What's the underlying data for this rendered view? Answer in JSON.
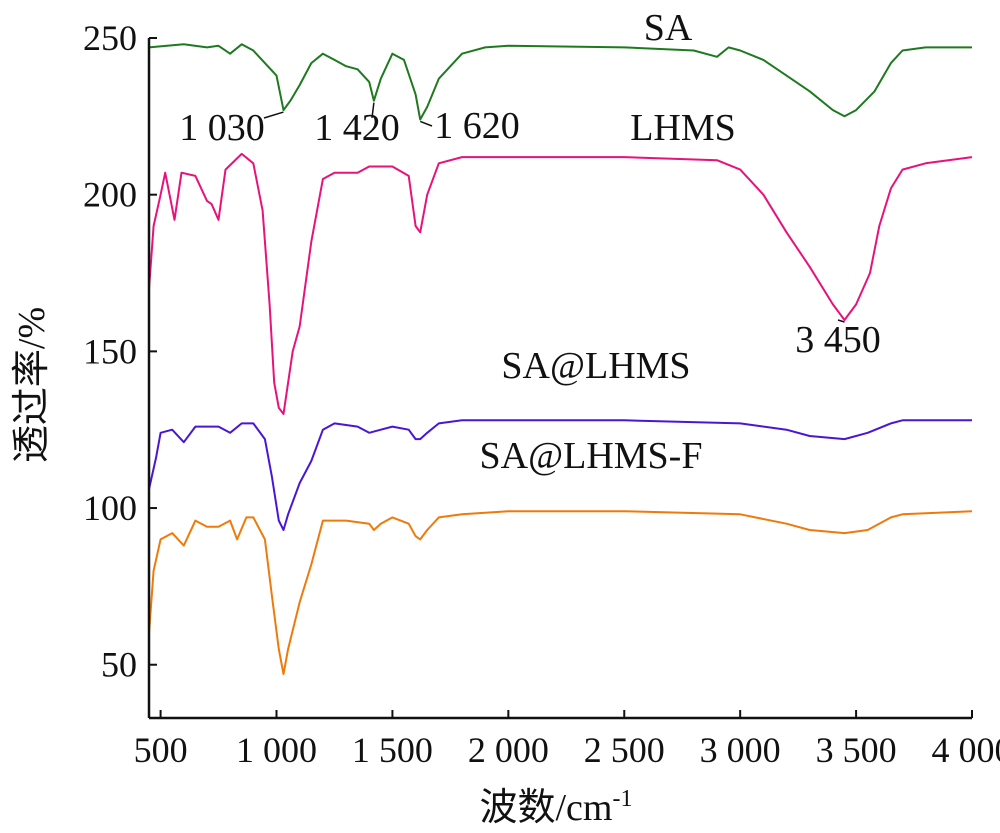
{
  "chart_data": {
    "type": "line",
    "title": "",
    "xlabel": "波数/cm",
    "xlabel_superscript": "-1",
    "ylabel": "透过率/%",
    "xlim": [
      450,
      4000
    ],
    "ylim": [
      33,
      250
    ],
    "grid": false,
    "legend": "none",
    "x_ticks": [
      {
        "value": 500,
        "label": "500"
      },
      {
        "value": 1000,
        "label": "1 000"
      },
      {
        "value": 1500,
        "label": "1 500"
      },
      {
        "value": 2000,
        "label": "2 000"
      },
      {
        "value": 2500,
        "label": "2 500"
      },
      {
        "value": 3000,
        "label": "3 000"
      },
      {
        "value": 3500,
        "label": "3 500"
      },
      {
        "value": 4000,
        "label": "4 000"
      }
    ],
    "y_ticks": [
      {
        "value": 50,
        "label": "50"
      },
      {
        "value": 100,
        "label": "100"
      },
      {
        "value": 150,
        "label": "150"
      },
      {
        "value": 200,
        "label": "200"
      },
      {
        "value": 250,
        "label": "250"
      }
    ],
    "series": [
      {
        "name": "SA",
        "color": "#1e7a1e",
        "points": [
          [
            450,
            247
          ],
          [
            600,
            248
          ],
          [
            700,
            247
          ],
          [
            750,
            247.5
          ],
          [
            800,
            245
          ],
          [
            850,
            248
          ],
          [
            900,
            246
          ],
          [
            950,
            242
          ],
          [
            1000,
            238
          ],
          [
            1030,
            227
          ],
          [
            1060,
            230
          ],
          [
            1100,
            235
          ],
          [
            1150,
            242
          ],
          [
            1200,
            245
          ],
          [
            1250,
            243
          ],
          [
            1300,
            241
          ],
          [
            1350,
            240
          ],
          [
            1400,
            236
          ],
          [
            1420,
            230
          ],
          [
            1450,
            237
          ],
          [
            1500,
            245
          ],
          [
            1550,
            243
          ],
          [
            1600,
            232
          ],
          [
            1620,
            224
          ],
          [
            1650,
            228
          ],
          [
            1700,
            237
          ],
          [
            1800,
            245
          ],
          [
            1900,
            247
          ],
          [
            2000,
            247.5
          ],
          [
            2500,
            247
          ],
          [
            2800,
            246
          ],
          [
            2900,
            244
          ],
          [
            2950,
            247
          ],
          [
            3000,
            246
          ],
          [
            3100,
            243
          ],
          [
            3200,
            238
          ],
          [
            3300,
            233
          ],
          [
            3400,
            227
          ],
          [
            3450,
            225
          ],
          [
            3500,
            227
          ],
          [
            3580,
            233
          ],
          [
            3650,
            242
          ],
          [
            3700,
            246
          ],
          [
            3800,
            247
          ],
          [
            4000,
            247
          ]
        ]
      },
      {
        "name": "LHMS",
        "color": "#e8127a",
        "points": [
          [
            450,
            170
          ],
          [
            470,
            190
          ],
          [
            500,
            200
          ],
          [
            520,
            207
          ],
          [
            560,
            192
          ],
          [
            590,
            207
          ],
          [
            650,
            206
          ],
          [
            700,
            198
          ],
          [
            720,
            197
          ],
          [
            750,
            192
          ],
          [
            780,
            208
          ],
          [
            850,
            213
          ],
          [
            900,
            210
          ],
          [
            940,
            195
          ],
          [
            970,
            165
          ],
          [
            990,
            140
          ],
          [
            1010,
            132
          ],
          [
            1030,
            130
          ],
          [
            1050,
            140
          ],
          [
            1070,
            150
          ],
          [
            1100,
            158
          ],
          [
            1150,
            185
          ],
          [
            1200,
            205
          ],
          [
            1250,
            207
          ],
          [
            1350,
            207
          ],
          [
            1400,
            209
          ],
          [
            1500,
            209
          ],
          [
            1570,
            206
          ],
          [
            1600,
            190
          ],
          [
            1620,
            188
          ],
          [
            1650,
            200
          ],
          [
            1700,
            210
          ],
          [
            1800,
            212
          ],
          [
            2000,
            212
          ],
          [
            2500,
            212
          ],
          [
            2900,
            211
          ],
          [
            3000,
            208
          ],
          [
            3100,
            200
          ],
          [
            3200,
            188
          ],
          [
            3300,
            177
          ],
          [
            3400,
            165
          ],
          [
            3450,
            160
          ],
          [
            3500,
            165
          ],
          [
            3560,
            175
          ],
          [
            3600,
            190
          ],
          [
            3650,
            202
          ],
          [
            3700,
            208
          ],
          [
            3800,
            210
          ],
          [
            4000,
            212
          ]
        ]
      },
      {
        "name": "SA@LHMS",
        "color": "#4a16d6",
        "points": [
          [
            450,
            106
          ],
          [
            480,
            116
          ],
          [
            500,
            124
          ],
          [
            550,
            125
          ],
          [
            600,
            121
          ],
          [
            650,
            126
          ],
          [
            700,
            126
          ],
          [
            750,
            126
          ],
          [
            800,
            124
          ],
          [
            850,
            127
          ],
          [
            900,
            127
          ],
          [
            950,
            122
          ],
          [
            980,
            110
          ],
          [
            1010,
            96
          ],
          [
            1030,
            93
          ],
          [
            1050,
            98
          ],
          [
            1100,
            108
          ],
          [
            1150,
            115
          ],
          [
            1200,
            125
          ],
          [
            1250,
            127
          ],
          [
            1350,
            126
          ],
          [
            1400,
            124
          ],
          [
            1450,
            125
          ],
          [
            1500,
            126
          ],
          [
            1570,
            125
          ],
          [
            1600,
            122
          ],
          [
            1620,
            122
          ],
          [
            1650,
            124
          ],
          [
            1700,
            127
          ],
          [
            1800,
            128
          ],
          [
            2000,
            128
          ],
          [
            2500,
            128
          ],
          [
            3000,
            127
          ],
          [
            3200,
            125
          ],
          [
            3300,
            123
          ],
          [
            3450,
            122
          ],
          [
            3550,
            124
          ],
          [
            3650,
            127
          ],
          [
            3700,
            128
          ],
          [
            4000,
            128
          ]
        ]
      },
      {
        "name": "SA@LHMS-F",
        "color": "#ef7a0a",
        "points": [
          [
            450,
            60
          ],
          [
            470,
            80
          ],
          [
            500,
            90
          ],
          [
            550,
            92
          ],
          [
            600,
            88
          ],
          [
            650,
            96
          ],
          [
            700,
            94
          ],
          [
            750,
            94
          ],
          [
            800,
            96
          ],
          [
            830,
            90
          ],
          [
            870,
            97
          ],
          [
            900,
            97
          ],
          [
            950,
            90
          ],
          [
            980,
            72
          ],
          [
            1010,
            55
          ],
          [
            1030,
            47
          ],
          [
            1050,
            55
          ],
          [
            1100,
            70
          ],
          [
            1150,
            82
          ],
          [
            1200,
            96
          ],
          [
            1300,
            96
          ],
          [
            1400,
            95
          ],
          [
            1420,
            93
          ],
          [
            1450,
            95
          ],
          [
            1500,
            97
          ],
          [
            1570,
            95
          ],
          [
            1600,
            91
          ],
          [
            1620,
            90
          ],
          [
            1650,
            93
          ],
          [
            1700,
            97
          ],
          [
            1800,
            98
          ],
          [
            2000,
            99
          ],
          [
            2500,
            99
          ],
          [
            3000,
            98
          ],
          [
            3200,
            95
          ],
          [
            3300,
            93
          ],
          [
            3450,
            92
          ],
          [
            3550,
            93
          ],
          [
            3650,
            97
          ],
          [
            3700,
            98
          ],
          [
            4000,
            99
          ]
        ]
      }
    ],
    "series_labels": [
      {
        "series": "SA",
        "text": "SA"
      },
      {
        "series": "LHMS",
        "text": "LHMS"
      },
      {
        "series": "SA@LHMS",
        "text": "SA@LHMS"
      },
      {
        "series": "SA@LHMS-F",
        "text": "SA@LHMS-F"
      }
    ],
    "annotations": [
      {
        "text": "1 030",
        "x": 1030,
        "y": 227
      },
      {
        "text": "1 420",
        "x": 1420,
        "y": 230
      },
      {
        "text": "1 620",
        "x": 1620,
        "y": 224
      },
      {
        "text": "3 450",
        "x": 3450,
        "y": 160
      }
    ]
  }
}
